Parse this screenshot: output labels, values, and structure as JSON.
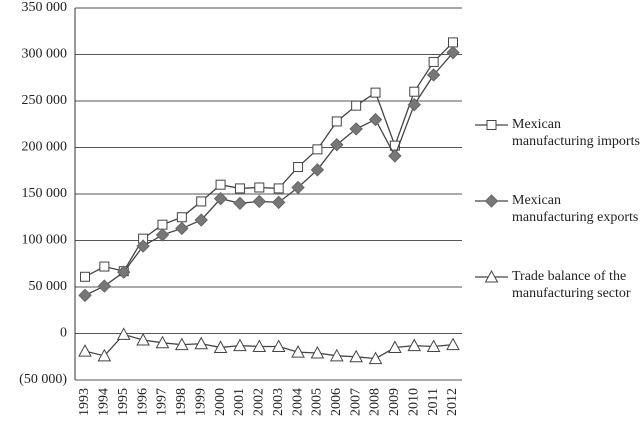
{
  "chart_data": {
    "type": "line",
    "categories": [
      "1993",
      "1994",
      "1995",
      "1996",
      "1997",
      "1998",
      "1999",
      "2000",
      "2001",
      "2002",
      "2003",
      "2004",
      "2005",
      "2006",
      "2007",
      "2008",
      "2009",
      "2010",
      "2011",
      "2012"
    ],
    "series": [
      {
        "name": "Mexican manufacturing imports",
        "color": "#444444",
        "marker": "square",
        "values": [
          61000,
          72000,
          67000,
          102000,
          117000,
          125000,
          142000,
          160000,
          156000,
          157000,
          156000,
          179000,
          198000,
          228000,
          245000,
          259000,
          202000,
          260000,
          292000,
          313000
        ]
      },
      {
        "name": "Mexican manufacturing exports",
        "color": "#444444",
        "marker": "diamond",
        "values": [
          41000,
          51000,
          66000,
          94000,
          106000,
          113000,
          122000,
          145000,
          140000,
          142000,
          141000,
          157000,
          176000,
          203000,
          220000,
          230000,
          191000,
          246000,
          278000,
          302000
        ]
      },
      {
        "name": "Trade balance of the manufacturing sector",
        "color": "#444444",
        "marker": "triangle",
        "values": [
          -19000,
          -24000,
          -1000,
          -7000,
          -10000,
          -12000,
          -11000,
          -15000,
          -13000,
          -14000,
          -14000,
          -20000,
          -21000,
          -24000,
          -25000,
          -27000,
          -15000,
          -13000,
          -14000,
          -12000
        ]
      }
    ],
    "ylim": [
      -50000,
      350000
    ],
    "yticks": [
      {
        "value": -50000,
        "label": "(50 000)"
      },
      0,
      {
        "value": 50000,
        "label": "50 000"
      },
      {
        "value": 100000,
        "label": "100 000"
      },
      {
        "value": 150000,
        "label": "150 000"
      },
      {
        "value": 200000,
        "label": "200 000"
      },
      {
        "value": 250000,
        "label": "250 000"
      },
      {
        "value": 300000,
        "label": "300 000"
      },
      {
        "value": 350000,
        "label": "350 000"
      }
    ],
    "grid": true,
    "legend": "right"
  }
}
